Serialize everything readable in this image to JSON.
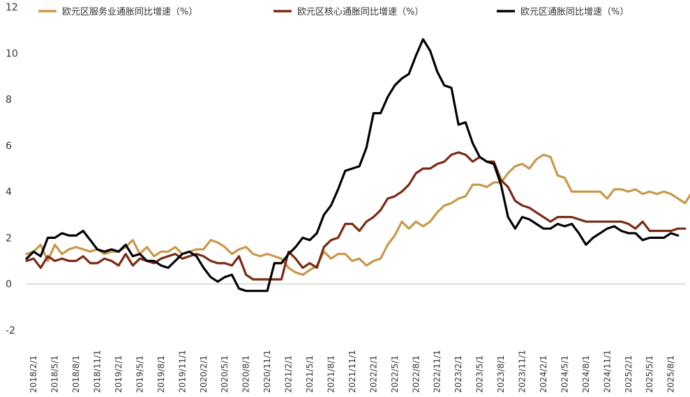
{
  "chart_data": {
    "type": "line",
    "title": "",
    "xlabel": "",
    "ylabel": "",
    "ylim": [
      -2,
      12
    ],
    "yticks": [
      -2,
      0,
      2,
      4,
      6,
      8,
      10,
      12
    ],
    "grid": false,
    "legend_position": "top",
    "x_tick_labels": [
      "2018/2/1",
      "2018/5/1",
      "2018/8/1",
      "2018/11/1",
      "2019/2/1",
      "2019/5/1",
      "2019/8/1",
      "2019/11/1",
      "2020/2/1",
      "2020/5/1",
      "2020/8/1",
      "2020/11/1",
      "2021/2/1",
      "2021/5/1",
      "2021/8/1",
      "2021/11/1",
      "2022/2/1",
      "2022/5/1",
      "2022/8/1",
      "2022/11/1",
      "2023/2/1",
      "2023/5/1",
      "2023/8/1",
      "2023/11/1",
      "2024/2/1",
      "2024/5/1",
      "2024/8/1",
      "2024/11/1",
      "2025/2/1",
      "2025/5/1",
      "2025/8/1"
    ],
    "x_start": "2018/1",
    "x_end": "2025/10",
    "series": [
      {
        "name": "欧元区服务业通胀同比增速（%）",
        "color": "#C9974A",
        "values": [
          1.3,
          1.4,
          1.7,
          1.0,
          1.7,
          1.3,
          1.5,
          1.6,
          1.5,
          1.4,
          1.5,
          1.3,
          1.4,
          1.4,
          1.6,
          1.9,
          1.3,
          1.6,
          1.2,
          1.4,
          1.4,
          1.6,
          1.3,
          1.4,
          1.5,
          1.5,
          1.9,
          1.8,
          1.6,
          1.3,
          1.5,
          1.6,
          1.3,
          1.2,
          1.3,
          1.2,
          1.1,
          0.7,
          0.5,
          0.4,
          0.6,
          0.8,
          1.4,
          1.1,
          1.3,
          1.3,
          1.0,
          1.1,
          0.8,
          1.0,
          1.1,
          1.7,
          2.1,
          2.7,
          2.4,
          2.7,
          2.5,
          2.7,
          3.1,
          3.4,
          3.5,
          3.7,
          3.8,
          4.3,
          4.3,
          4.2,
          4.4,
          4.4,
          4.8,
          5.1,
          5.2,
          5.0,
          5.4,
          5.6,
          5.5,
          4.7,
          4.6,
          4.0,
          4.0,
          4.0,
          4.0,
          4.0,
          3.7,
          4.1,
          4.1,
          4.0,
          4.1,
          3.9,
          4.0,
          3.9,
          4.0,
          3.9,
          3.7,
          3.5,
          4.0,
          3.2,
          3.3,
          3.2,
          3.1,
          3.2,
          3.4
        ]
      },
      {
        "name": "欧元区核心通胀同比增速（%）",
        "color": "#7A2A12",
        "values": [
          1.0,
          1.1,
          0.7,
          1.2,
          1.0,
          1.1,
          1.0,
          1.0,
          1.2,
          0.9,
          0.9,
          1.1,
          1.0,
          0.8,
          1.3,
          0.8,
          1.1,
          1.0,
          0.9,
          1.1,
          1.2,
          1.3,
          1.1,
          1.2,
          1.3,
          1.2,
          1.0,
          0.9,
          0.9,
          0.8,
          1.2,
          0.4,
          0.2,
          0.2,
          0.2,
          0.2,
          0.2,
          1.4,
          1.1,
          0.7,
          0.9,
          0.7,
          1.6,
          1.9,
          2.0,
          2.6,
          2.6,
          2.3,
          2.7,
          2.9,
          3.2,
          3.7,
          3.8,
          4.0,
          4.3,
          4.8,
          5.0,
          5.0,
          5.2,
          5.3,
          5.6,
          5.7,
          5.6,
          5.3,
          5.5,
          5.3,
          5.3,
          4.5,
          4.2,
          3.6,
          3.4,
          3.3,
          3.1,
          2.9,
          2.7,
          2.9,
          2.9,
          2.9,
          2.8,
          2.7,
          2.7,
          2.7,
          2.7,
          2.7,
          2.7,
          2.6,
          2.4,
          2.7,
          2.3,
          2.3,
          2.3,
          2.3,
          2.4,
          2.4
        ]
      },
      {
        "name": "欧元区通胀同比增速（%）",
        "color": "#000000",
        "values": [
          1.1,
          1.4,
          1.2,
          2.0,
          2.0,
          2.2,
          2.1,
          2.1,
          2.3,
          1.9,
          1.5,
          1.4,
          1.5,
          1.4,
          1.7,
          1.2,
          1.3,
          1.0,
          1.0,
          0.8,
          0.7,
          1.0,
          1.3,
          1.4,
          1.2,
          0.7,
          0.3,
          0.1,
          0.3,
          0.4,
          -0.2,
          -0.3,
          -0.3,
          -0.3,
          -0.3,
          0.9,
          0.9,
          1.3,
          1.6,
          2.0,
          1.9,
          2.2,
          3.0,
          3.4,
          4.1,
          4.9,
          5.0,
          5.1,
          5.9,
          7.4,
          7.4,
          8.1,
          8.6,
          8.9,
          9.1,
          9.9,
          10.6,
          10.1,
          9.2,
          8.6,
          8.5,
          6.9,
          7.0,
          6.1,
          5.5,
          5.3,
          5.2,
          4.3,
          2.9,
          2.4,
          2.9,
          2.8,
          2.6,
          2.4,
          2.4,
          2.6,
          2.5,
          2.6,
          2.2,
          1.7,
          2.0,
          2.2,
          2.4,
          2.5,
          2.3,
          2.2,
          2.2,
          1.9,
          2.0,
          2.0,
          2.0,
          2.2,
          2.1
        ]
      }
    ]
  }
}
